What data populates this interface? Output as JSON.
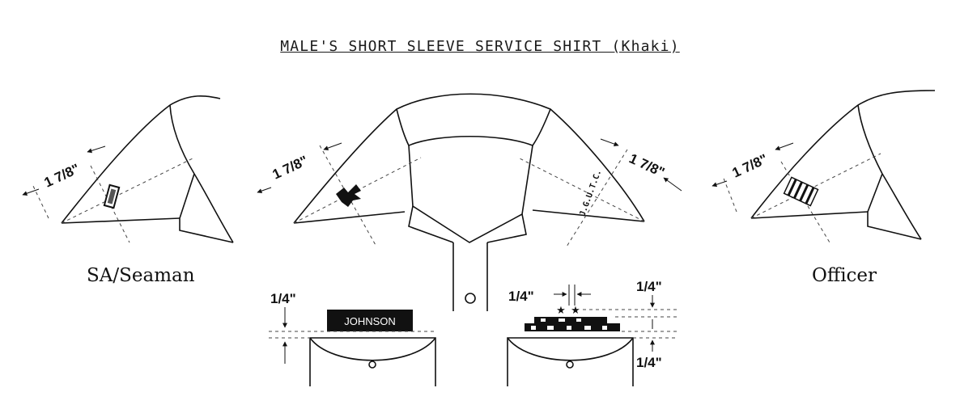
{
  "title": "MALE'S SHORT SLEEVE SERVICE SHIRT (Khaki)",
  "views": {
    "left": {
      "caption": "SA/Seaman",
      "measure": "1 7/8\""
    },
    "center": {
      "measure_left": "1 7/8\"",
      "measure_right": "1 7/8\"",
      "collar_device_text": "J.G.U.T.C."
    },
    "right": {
      "caption": "Officer",
      "measure": "1 7/8\""
    }
  },
  "pocket_details": {
    "nameplate_text": "JOHNSON",
    "left_spacing": "1/4\"",
    "right_star_spacing": "1/4\"",
    "right_top_spacing": "1/4\"",
    "right_bottom_spacing": "1/4\""
  }
}
